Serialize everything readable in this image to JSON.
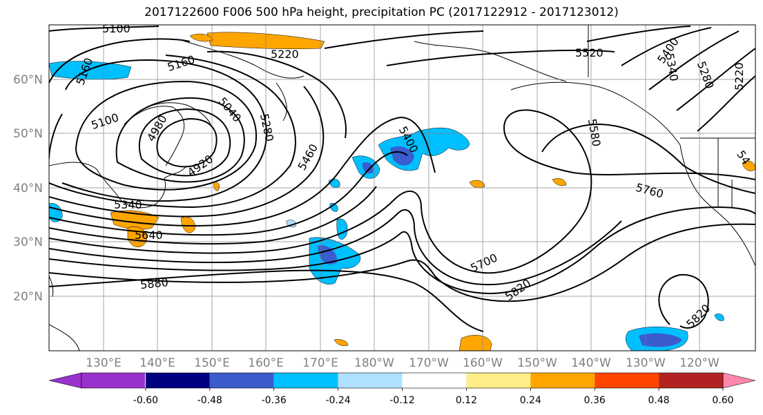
{
  "title": "2017122600 F006 500 hPa height, precipitation PC (2017122912 - 2017123012)",
  "lon_labels": [
    "130°E",
    "140°E",
    "150°E",
    "160°E",
    "170°E",
    "180°W",
    "170°W",
    "160°W",
    "150°W",
    "140°W",
    "130°W",
    "120°W"
  ],
  "lat_labels": [
    "60°N",
    "50°N",
    "40°N",
    "30°N",
    "20°N"
  ],
  "contour_labels": [
    {
      "text": "5100"
    },
    {
      "text": "5160"
    },
    {
      "text": "5220"
    },
    {
      "text": "5520"
    },
    {
      "text": "5400"
    },
    {
      "text": "5340"
    },
    {
      "text": "5280"
    },
    {
      "text": "5220"
    },
    {
      "text": "5160"
    },
    {
      "text": "5100"
    },
    {
      "text": "4980"
    },
    {
      "text": "5040"
    },
    {
      "text": "5280"
    },
    {
      "text": "4920"
    },
    {
      "text": "5400"
    },
    {
      "text": "5460"
    },
    {
      "text": "5580"
    },
    {
      "text": "5760"
    },
    {
      "text": "5340"
    },
    {
      "text": "5640"
    },
    {
      "text": "5700"
    },
    {
      "text": "5880"
    },
    {
      "text": "5820"
    },
    {
      "text": "5820"
    },
    {
      "text": "54"
    }
  ],
  "colorbar": {
    "colors": [
      "#9932cc",
      "#000080",
      "#3a5ccc",
      "#00bfff",
      "#b0e0ff",
      "#ffffff",
      "#ffee88",
      "#ffa500",
      "#ff4500",
      "#b22222",
      "#ff88aa"
    ],
    "tick_labels": [
      "-0.60",
      "-0.48",
      "-0.36",
      "-0.24",
      "-0.12",
      "0.12",
      "0.24",
      "0.36",
      "0.48",
      "0.60"
    ]
  }
}
